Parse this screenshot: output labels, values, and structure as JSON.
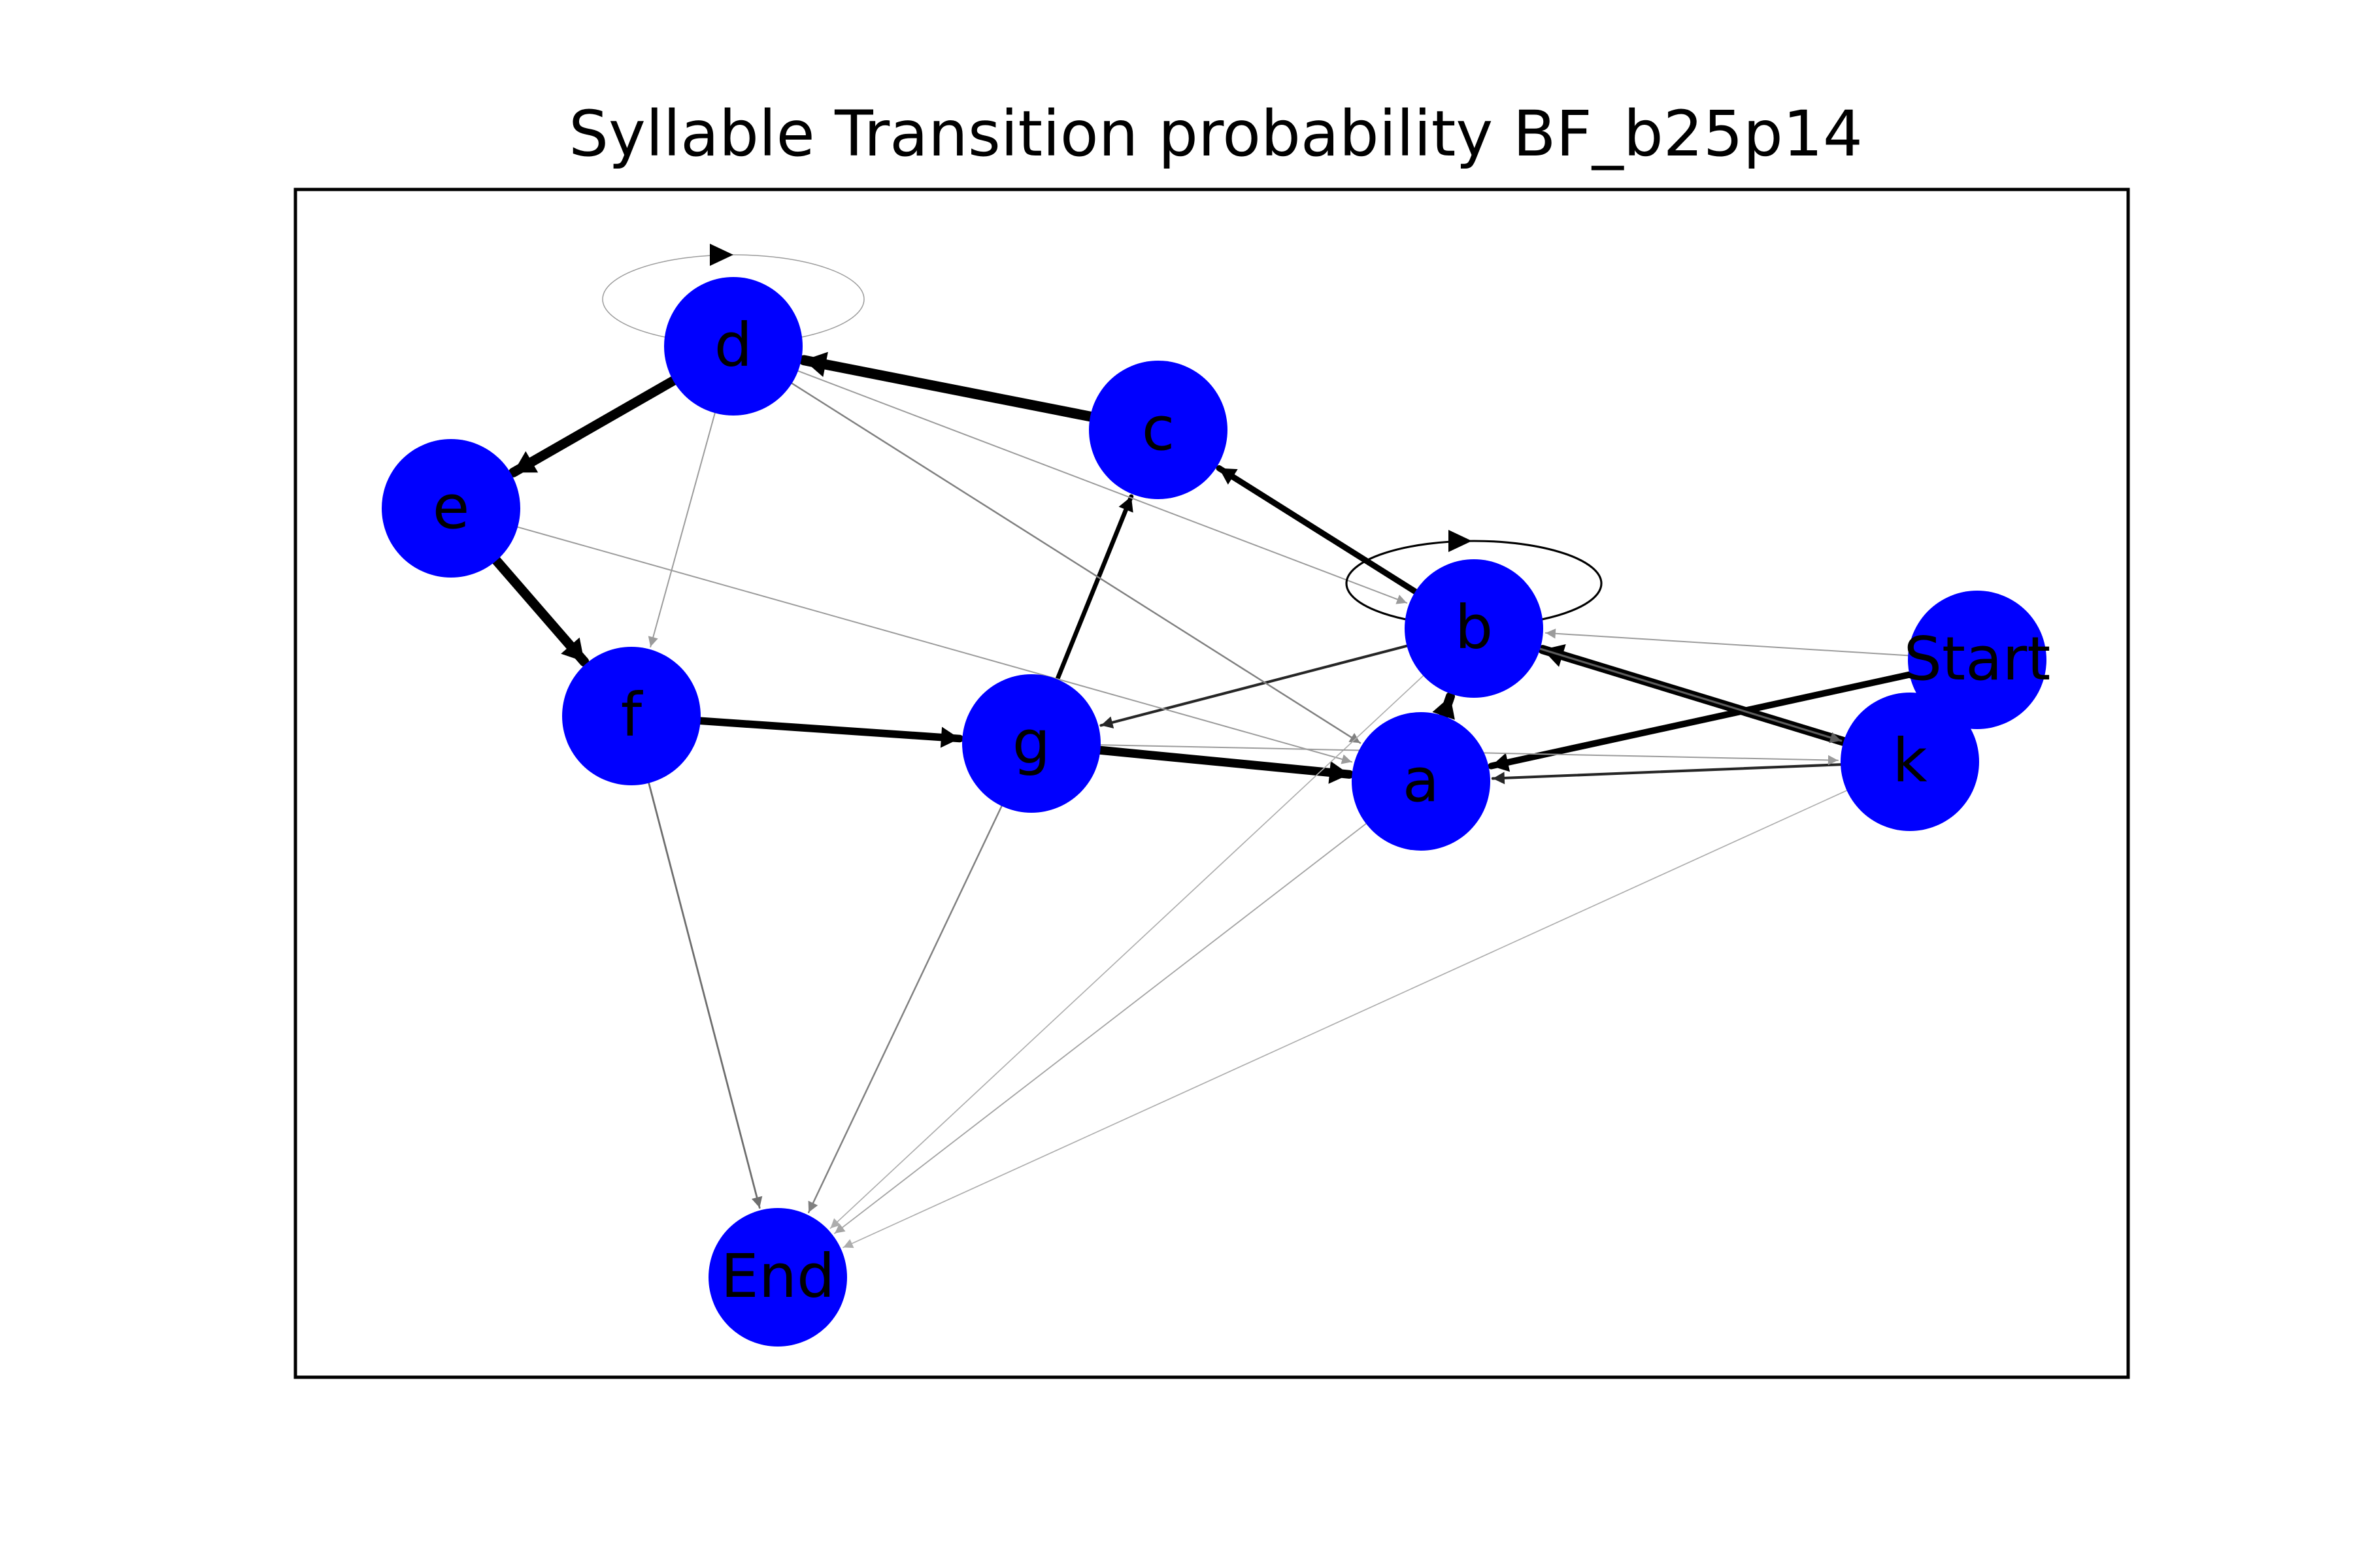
{
  "title": "Syllable Transition probability BF_b25p14",
  "colors": {
    "node_fill": "#0000ff",
    "edge": "#000000",
    "frame": "#000000",
    "background": "#ffffff"
  },
  "nodes": [
    {
      "id": "d",
      "label": "d"
    },
    {
      "id": "c",
      "label": "c"
    },
    {
      "id": "e",
      "label": "e"
    },
    {
      "id": "b",
      "label": "b"
    },
    {
      "id": "Start",
      "label": "Start"
    },
    {
      "id": "f",
      "label": "f"
    },
    {
      "id": "g",
      "label": "g"
    },
    {
      "id": "a",
      "label": "a"
    },
    {
      "id": "k",
      "label": "k"
    },
    {
      "id": "End",
      "label": "End"
    }
  ],
  "edges": [
    {
      "source": "c",
      "target": "d",
      "weight": 0.9
    },
    {
      "source": "d",
      "target": "e",
      "weight": 0.85
    },
    {
      "source": "e",
      "target": "f",
      "weight": 0.85
    },
    {
      "source": "f",
      "target": "g",
      "weight": 0.65
    },
    {
      "source": "g",
      "target": "a",
      "weight": 0.75
    },
    {
      "source": "k",
      "target": "b",
      "weight": 0.8
    },
    {
      "source": "a",
      "target": "b",
      "weight": 0.8
    },
    {
      "source": "b",
      "target": "c",
      "weight": 0.5
    },
    {
      "source": "Start",
      "target": "a",
      "weight": 0.55
    },
    {
      "source": "g",
      "target": "c",
      "weight": 0.35
    },
    {
      "source": "b",
      "target": "g",
      "weight": 0.18
    },
    {
      "source": "k",
      "target": "a",
      "weight": 0.18
    },
    {
      "source": "b",
      "target": "k",
      "weight": 0.12
    },
    {
      "source": "d",
      "target": "a",
      "weight": 0.08
    },
    {
      "source": "d",
      "target": "f",
      "weight": 0.05
    },
    {
      "source": "d",
      "target": "b",
      "weight": 0.05
    },
    {
      "source": "e",
      "target": "a",
      "weight": 0.05
    },
    {
      "source": "f",
      "target": "End",
      "weight": 0.1
    },
    {
      "source": "g",
      "target": "End",
      "weight": 0.08
    },
    {
      "source": "a",
      "target": "End",
      "weight": 0.04
    },
    {
      "source": "b",
      "target": "End",
      "weight": 0.03
    },
    {
      "source": "k",
      "target": "End",
      "weight": 0.03
    },
    {
      "source": "g",
      "target": "k",
      "weight": 0.05
    },
    {
      "source": "Start",
      "target": "b",
      "weight": 0.05
    },
    {
      "source": "b",
      "target": "b",
      "weight": 0.25
    },
    {
      "source": "d",
      "target": "d",
      "weight": 0.05
    }
  ]
}
